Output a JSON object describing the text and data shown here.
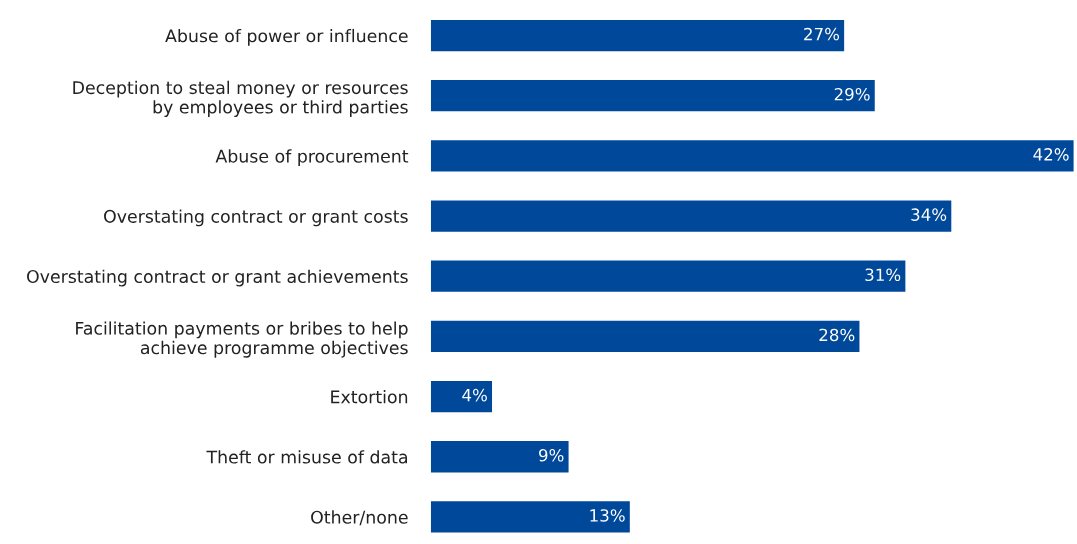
{
  "chart_data": {
    "type": "bar",
    "orientation": "horizontal",
    "categories": [
      "Abuse of power or influence",
      "Deception to steal money or resources\nby employees or third parties",
      "Abuse of procurement",
      "Overstating contract or grant costs",
      "Overstating contract or grant achievements",
      "Facilitation payments or bribes to help\nachieve programme objectives",
      "Extortion",
      "Theft or misuse of data",
      "Other/none"
    ],
    "values": [
      27,
      29,
      42,
      34,
      31,
      28,
      4,
      9,
      13
    ],
    "color": "#00489a",
    "value_labels": [
      "27%",
      "29%",
      "42%",
      "34%",
      "31%",
      "28%",
      "4%",
      "9%",
      "13%"
    ],
    "grid": false,
    "legend": false
  }
}
